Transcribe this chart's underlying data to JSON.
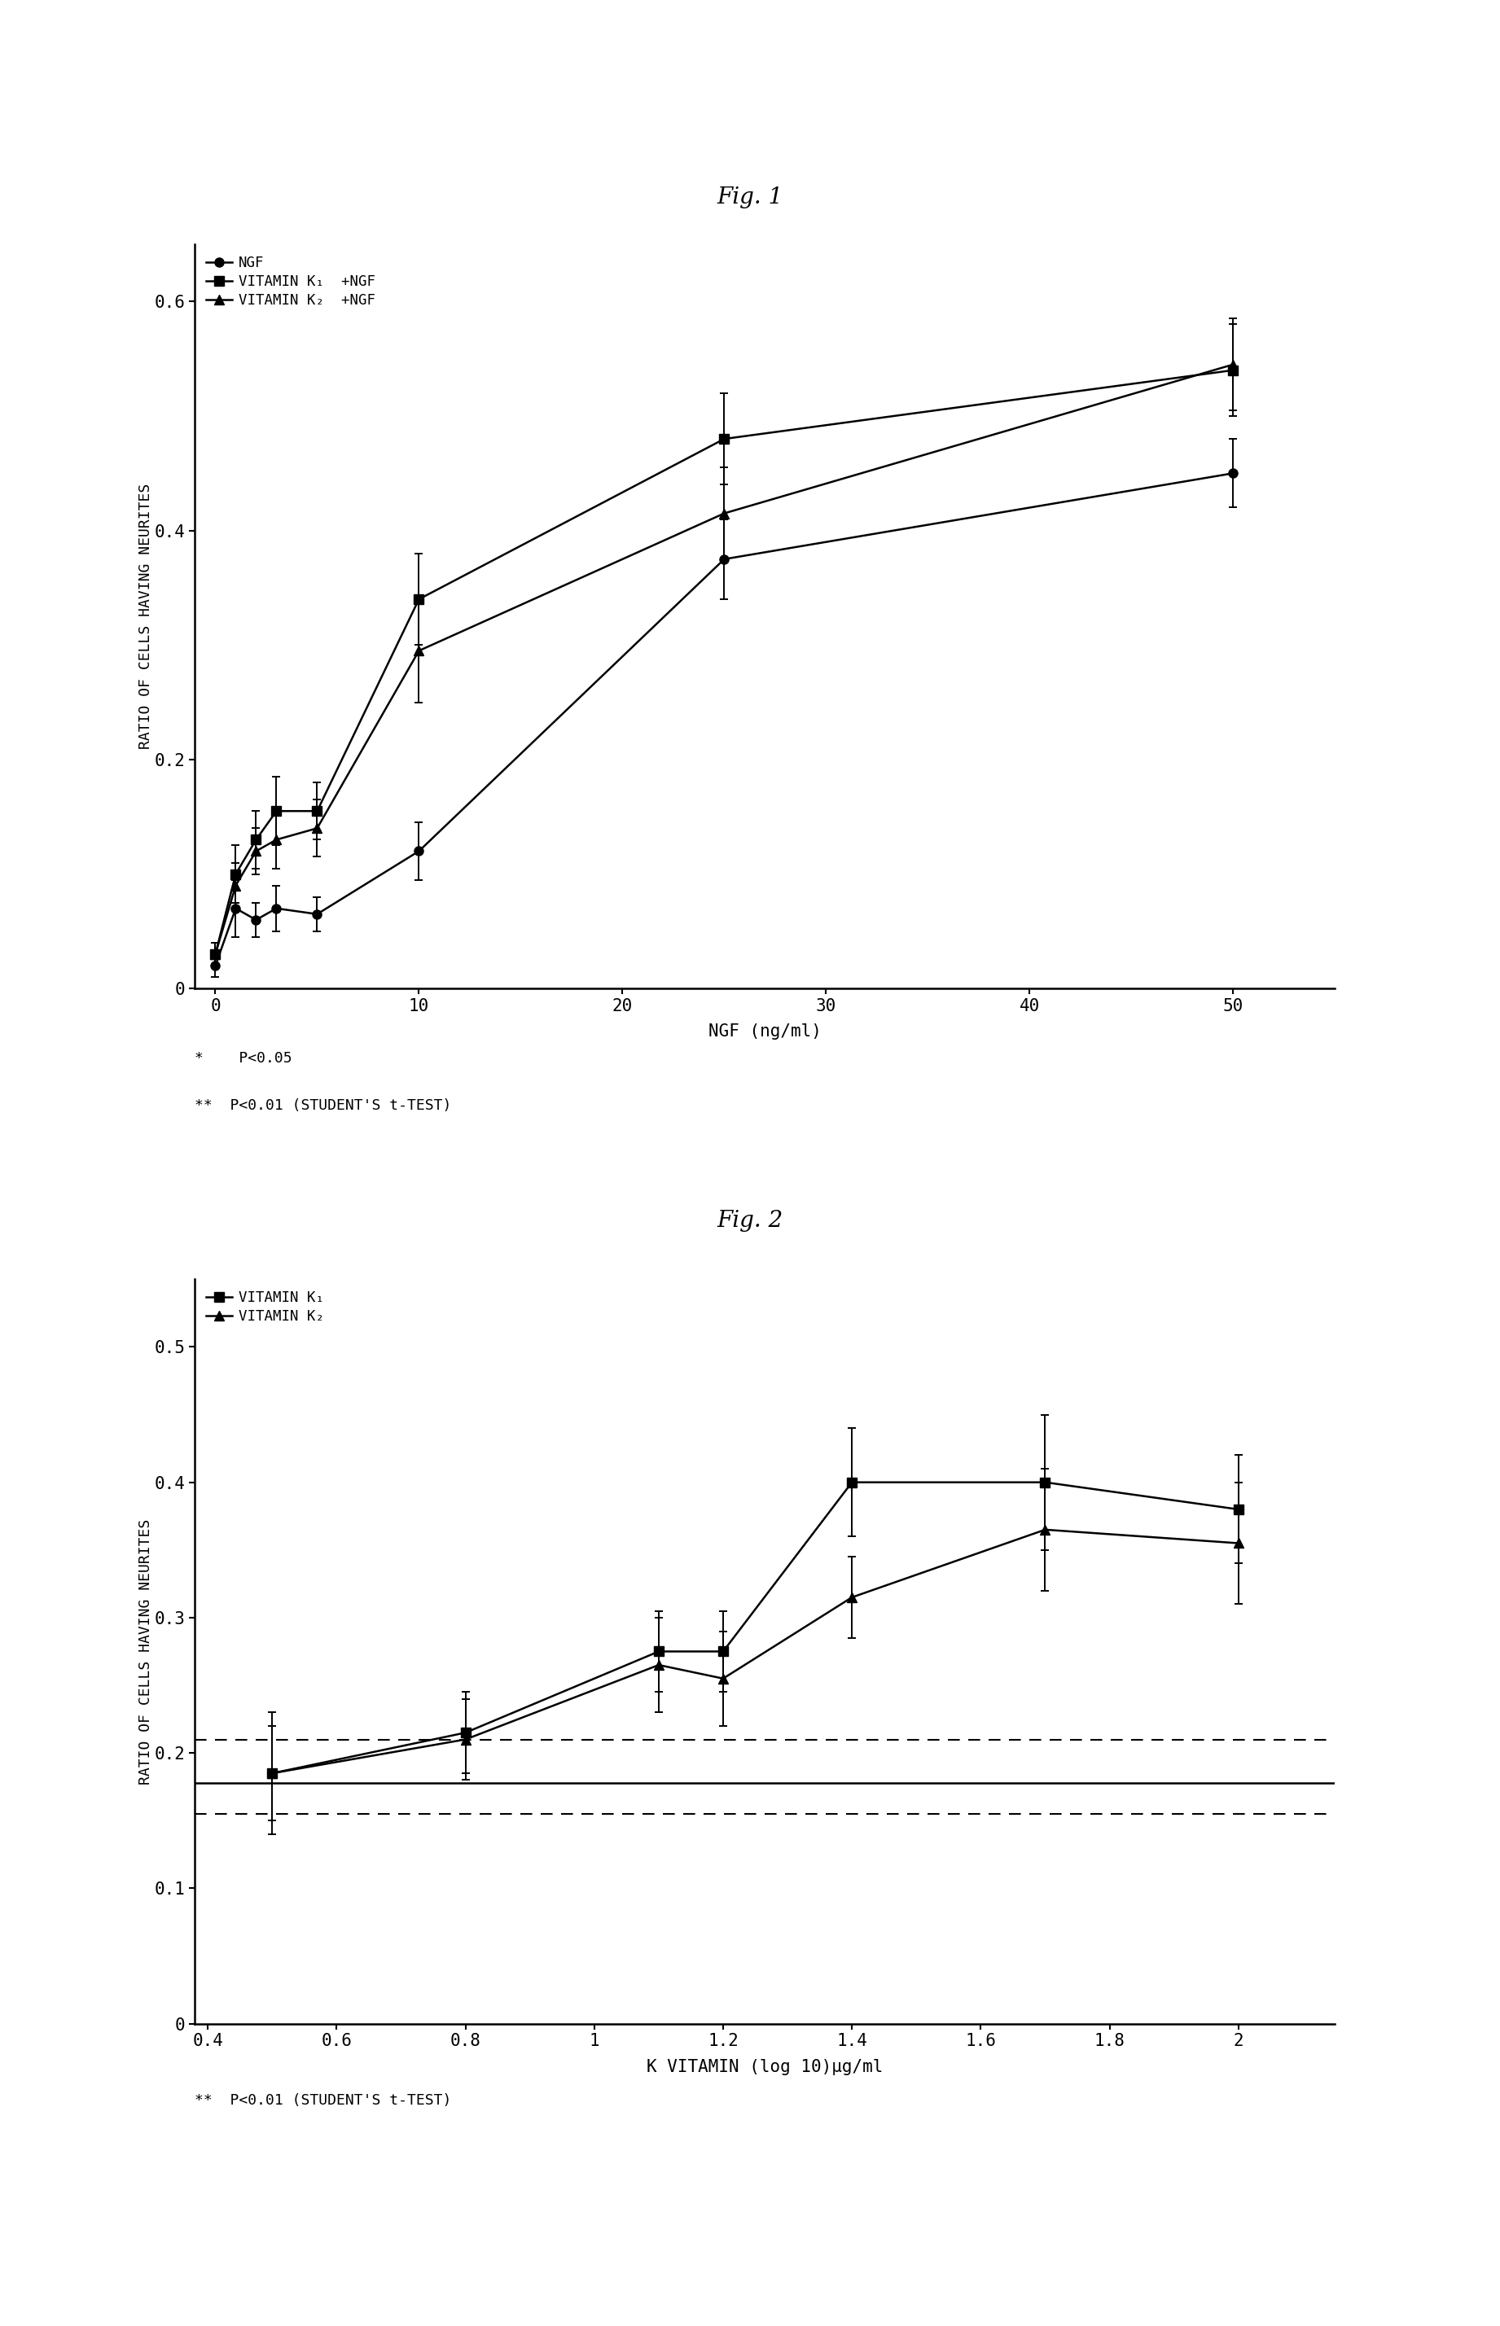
{
  "fig1": {
    "title": "Fig. 1",
    "xlabel": "NGF (ng/ml)",
    "ylabel": "RATIO OF CELLS HAVING NEURITES",
    "xlim": [
      -1,
      55
    ],
    "ylim": [
      0,
      0.65
    ],
    "xticks": [
      0,
      10,
      20,
      30,
      40,
      50
    ],
    "yticks": [
      0,
      0.2,
      0.4,
      0.6
    ],
    "ytick_labels": [
      "0",
      "0.2",
      "0.4",
      "0.6"
    ],
    "ngf_x": [
      0,
      1,
      2,
      3,
      5,
      10,
      25,
      50
    ],
    "ngf_y": [
      0.02,
      0.07,
      0.06,
      0.07,
      0.065,
      0.12,
      0.375,
      0.45
    ],
    "ngf_yerr": [
      0.01,
      0.025,
      0.015,
      0.02,
      0.015,
      0.025,
      0.035,
      0.03
    ],
    "vitk1_x": [
      0,
      1,
      2,
      3,
      5,
      10,
      25,
      50
    ],
    "vitk1_y": [
      0.03,
      0.1,
      0.13,
      0.155,
      0.155,
      0.34,
      0.48,
      0.54
    ],
    "vitk1_yerr": [
      0.01,
      0.025,
      0.025,
      0.03,
      0.025,
      0.04,
      0.04,
      0.04
    ],
    "vitk2_x": [
      0,
      1,
      2,
      3,
      5,
      10,
      25,
      50
    ],
    "vitk2_y": [
      0.03,
      0.09,
      0.12,
      0.13,
      0.14,
      0.295,
      0.415,
      0.545
    ],
    "vitk2_yerr": [
      0.01,
      0.02,
      0.02,
      0.025,
      0.025,
      0.045,
      0.04,
      0.04
    ],
    "legend_labels": [
      "NGF",
      "VITAMIN K₁  +NGF",
      "VITAMIN K₂  +NGF"
    ],
    "annotation1": "*    P<0.05",
    "annotation2": "**  P<0.01 (STUDENT'S t-TEST)"
  },
  "fig2": {
    "title": "Fig. 2",
    "xlabel": "K VITAMIN (log 10)μg/ml",
    "ylabel": "RATIO OF CELLS HAVING NEURITES",
    "xlim": [
      0.38,
      2.15
    ],
    "ylim": [
      0,
      0.55
    ],
    "xticks": [
      0.4,
      0.6,
      0.8,
      1.0,
      1.2,
      1.4,
      1.6,
      1.8,
      2.0
    ],
    "xtick_labels": [
      "0.4",
      "0.6",
      "0.8",
      "1",
      "1.2",
      "1.4",
      "1.6",
      "1.8",
      "2"
    ],
    "yticks": [
      0,
      0.1,
      0.2,
      0.3,
      0.4,
      0.5
    ],
    "ytick_labels": [
      "0",
      "0.1",
      "0.2",
      "0.3",
      "0.4",
      "0.5"
    ],
    "vitk1_x": [
      0.5,
      0.8,
      1.1,
      1.2,
      1.4,
      1.7,
      2.0
    ],
    "vitk1_y": [
      0.185,
      0.215,
      0.275,
      0.275,
      0.4,
      0.4,
      0.38
    ],
    "vitk1_yerr": [
      0.035,
      0.03,
      0.03,
      0.03,
      0.04,
      0.05,
      0.04
    ],
    "vitk2_x": [
      0.5,
      0.8,
      1.1,
      1.2,
      1.4,
      1.7,
      2.0
    ],
    "vitk2_y": [
      0.185,
      0.21,
      0.265,
      0.255,
      0.315,
      0.365,
      0.355
    ],
    "vitk2_yerr": [
      0.045,
      0.03,
      0.035,
      0.035,
      0.03,
      0.045,
      0.045
    ],
    "hline_solid": 0.178,
    "hline_dashed_upper": 0.21,
    "hline_dashed_lower": 0.155,
    "legend_labels": [
      "VITAMIN K₁",
      "VITAMIN K₂"
    ],
    "annotation": "**  P<0.01 (STUDENT'S t-TEST)"
  },
  "background_color": "#ffffff",
  "line_color": "#000000"
}
